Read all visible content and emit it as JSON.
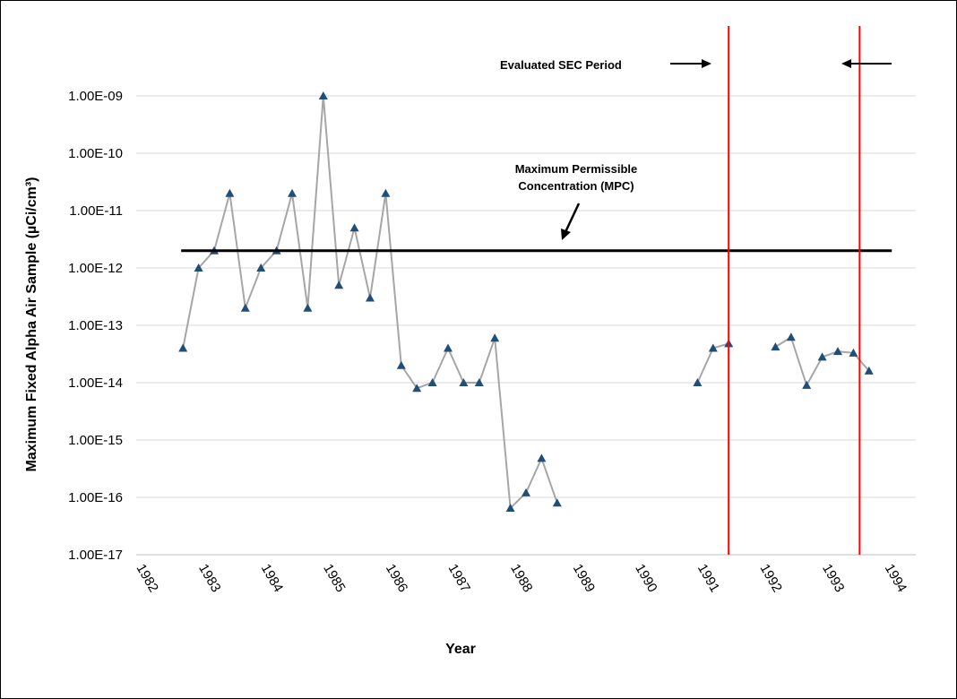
{
  "chart_data": {
    "type": "line",
    "title": "",
    "xlabel": "Year",
    "ylabel": "Maximum Fixed Alpha Air Sample (µCi/cm³)",
    "y_scale": "log",
    "ylim": [
      1e-17,
      1e-09
    ],
    "y_ticks": [
      1e-17,
      1e-16,
      1e-15,
      1e-14,
      1e-13,
      1e-12,
      1e-11,
      1e-10,
      1e-09
    ],
    "y_tick_labels": [
      "1.00E-17",
      "1.00E-16",
      "1.00E-15",
      "1.00E-14",
      "1.00E-13",
      "1.00E-12",
      "1.00E-11",
      "1.00E-10",
      "1.00E-09"
    ],
    "x_ticks": [
      1982,
      1983,
      1984,
      1985,
      1986,
      1987,
      1988,
      1989,
      1990,
      1991,
      1992,
      1993,
      1994
    ],
    "x_tick_labels": [
      "1982",
      "1983",
      "1984",
      "1985",
      "1986",
      "1987",
      "1988",
      "1989",
      "1990",
      "1991",
      "1992",
      "1993",
      "1994"
    ],
    "xlim": [
      1982,
      1994.5
    ],
    "grid": "horizontal",
    "series_color": "#a6a6a6",
    "marker_color": "#1f4e79",
    "segments": [
      {
        "x": [
          1982.75,
          1983.0,
          1983.25,
          1983.5,
          1983.75,
          1984.0,
          1984.25,
          1984.5,
          1984.75,
          1985.0,
          1985.25,
          1985.5,
          1985.75,
          1986.0,
          1986.25,
          1986.5,
          1986.75,
          1987.0,
          1987.25,
          1987.5,
          1987.75,
          1988.0,
          1988.25,
          1988.5,
          1988.75
        ],
        "y": [
          4e-14,
          1e-12,
          2e-12,
          2e-11,
          2e-13,
          1e-12,
          2e-12,
          2e-11,
          2e-13,
          1e-09,
          5e-13,
          5e-12,
          3e-13,
          2e-11,
          2e-14,
          8e-15,
          1e-14,
          4e-14,
          1e-14,
          1e-14,
          6e-14,
          6.5e-17,
          1.2e-16,
          4.8e-16,
          8e-17
        ]
      },
      {
        "x": [
          1991.0,
          1991.25,
          1991.5
        ],
        "y": [
          1e-14,
          4e-14,
          4.8e-14
        ]
      },
      {
        "x": [
          1992.25,
          1992.5,
          1992.75,
          1993.0,
          1993.25,
          1993.5,
          1993.75
        ],
        "y": [
          4.2e-14,
          6.2e-14,
          9e-15,
          2.8e-14,
          3.5e-14,
          3.3e-14,
          1.6e-14
        ]
      }
    ],
    "reference_line": {
      "label": "Maximum Permissible Concentration (MPC)",
      "label_lines": [
        "Maximum Permissible",
        "Concentration (MPC)"
      ],
      "y": 2e-12,
      "x_range": [
        1982.75,
        1994.0
      ],
      "color": "#000000"
    },
    "vertical_lines": [
      {
        "x": 1991.5,
        "color": "#ff0000"
      },
      {
        "x": 1993.6,
        "color": "#ff0000"
      }
    ],
    "period_label": "Evaluated SEC Period"
  }
}
